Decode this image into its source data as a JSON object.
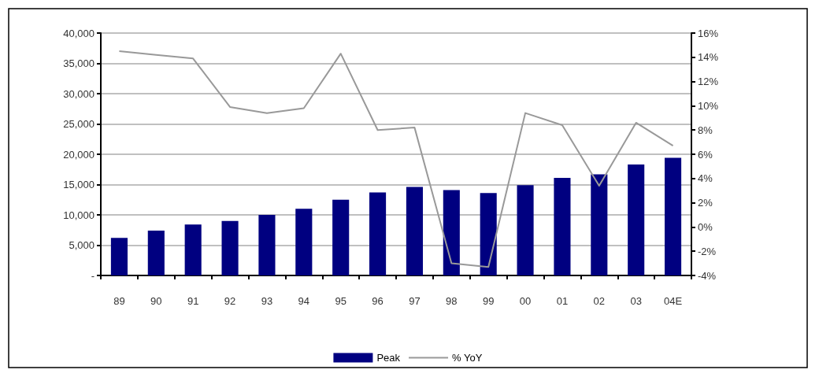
{
  "chart_data": {
    "type": "bar",
    "categories": [
      "89",
      "90",
      "91",
      "92",
      "93",
      "94",
      "95",
      "96",
      "97",
      "98",
      "99",
      "00",
      "01",
      "02",
      "03",
      "04E"
    ],
    "series": [
      {
        "name": "Peak",
        "color": "#000080",
        "values": [
          6200,
          7400,
          8400,
          9000,
          10000,
          11000,
          12500,
          13700,
          14600,
          14100,
          13600,
          14900,
          16100,
          16700,
          18300,
          19400
        ]
      },
      {
        "name": "% YoY",
        "type": "line",
        "axis": "y2",
        "color": "#999999",
        "values": [
          14.5,
          14.2,
          13.9,
          9.9,
          9.4,
          9.8,
          14.3,
          8.0,
          8.2,
          -3.0,
          -3.3,
          9.4,
          8.4,
          3.4,
          8.6,
          6.7
        ]
      }
    ],
    "ylim": [
      0,
      40000
    ],
    "yticks": [
      {
        "value": 0,
        "label": "-"
      },
      {
        "value": 5000,
        "label": "5,000"
      },
      {
        "value": 10000,
        "label": "10,000"
      },
      {
        "value": 15000,
        "label": "15,000"
      },
      {
        "value": 20000,
        "label": "20,000"
      },
      {
        "value": 25000,
        "label": "25,000"
      },
      {
        "value": 30000,
        "label": "30,000"
      },
      {
        "value": 35000,
        "label": "35,000"
      },
      {
        "value": 40000,
        "label": "40,000"
      }
    ],
    "y2lim": [
      -4,
      16
    ],
    "y2ticks": [
      {
        "value": -4,
        "label": "-4%"
      },
      {
        "value": -2,
        "label": "-2%"
      },
      {
        "value": 0,
        "label": "0%"
      },
      {
        "value": 2,
        "label": "2%"
      },
      {
        "value": 4,
        "label": "4%"
      },
      {
        "value": 6,
        "label": "6%"
      },
      {
        "value": 8,
        "label": "8%"
      },
      {
        "value": 10,
        "label": "10%"
      },
      {
        "value": 12,
        "label": "12%"
      },
      {
        "value": 14,
        "label": "14%"
      },
      {
        "value": 16,
        "label": "16%"
      }
    ],
    "grid": "y",
    "legend": "bottom",
    "marker": "none",
    "line_style": "solid"
  }
}
